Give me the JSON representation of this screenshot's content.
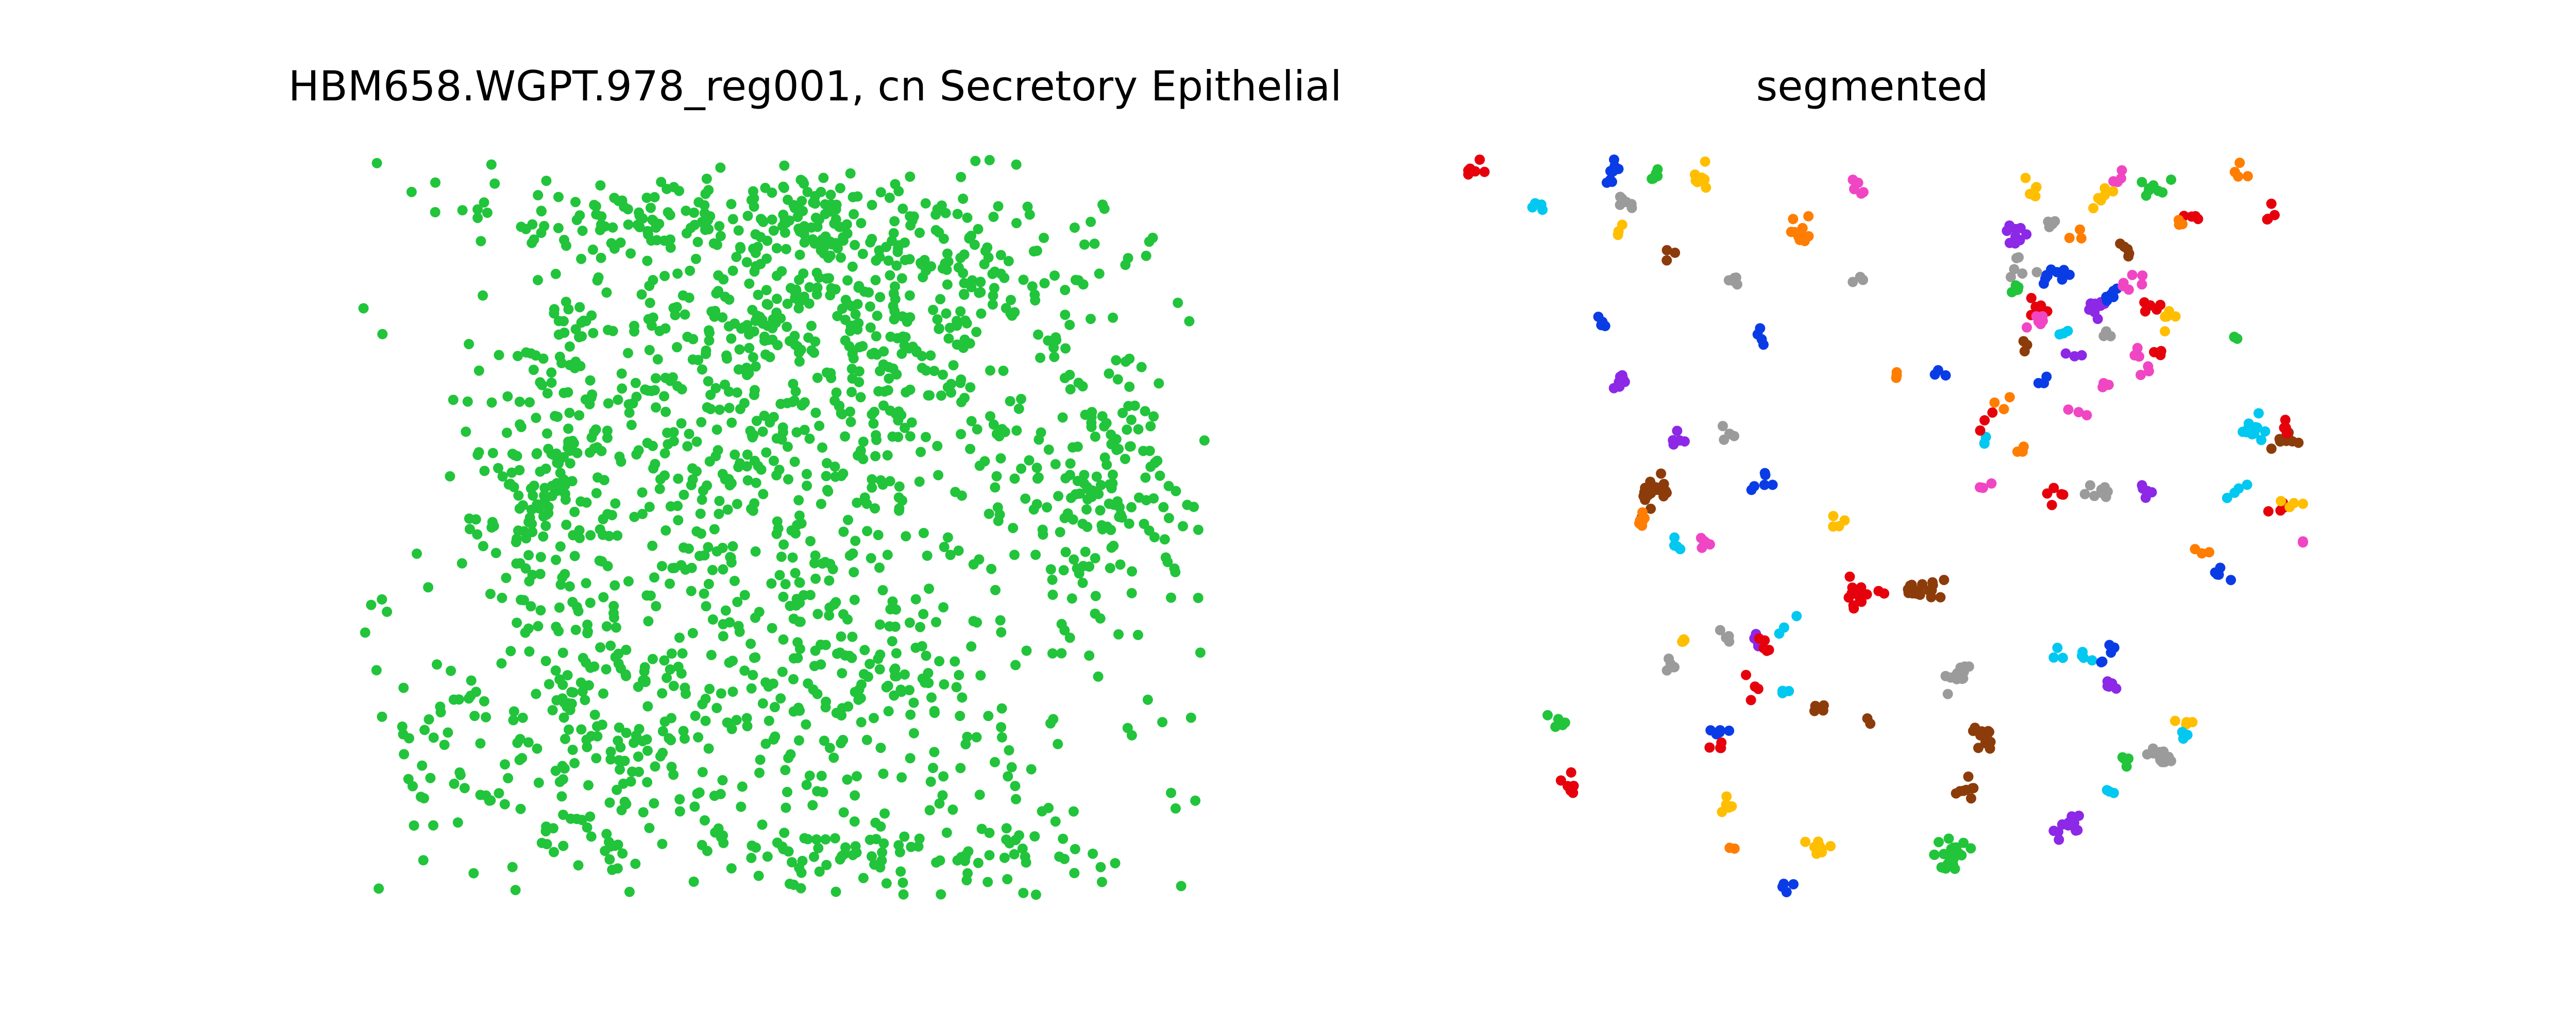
{
  "figure": {
    "panels": [
      {
        "title": "HBM658.WGPT.978_reg001, cn Secretory Epithelial",
        "point_color": "#21c43a"
      },
      {
        "title": "segmented",
        "palette": [
          "#e6000c",
          "#00c8f0",
          "#0a3ce6",
          "#9b9b9b",
          "#ffbe00",
          "#8c3c0a",
          "#ff7d00",
          "#8c28e6",
          "#f046c3",
          "#21c43a"
        ]
      }
    ]
  },
  "chart_data": [
    {
      "type": "scatter",
      "title": "HBM658.WGPT.978_reg001, cn Secretory Epithelial",
      "xlabel": "",
      "ylabel": "",
      "axes_visible": false,
      "grid": false,
      "xlim": [
        0,
        100
      ],
      "ylim": [
        0,
        100
      ],
      "series": [
        {
          "color": "#21c43a",
          "points_description": "approx. 1900 cell centroids, densest in upper-central band",
          "density_regions": [
            {
              "cx": 58,
              "cy": 82,
              "rx": 26,
              "ry": 16,
              "n": 380
            },
            {
              "cx": 48,
              "cy": 60,
              "rx": 28,
              "ry": 20,
              "n": 320
            },
            {
              "cx": 88,
              "cy": 56,
              "rx": 9,
              "ry": 16,
              "n": 140
            },
            {
              "cx": 22,
              "cy": 58,
              "rx": 8,
              "ry": 22,
              "n": 150
            },
            {
              "cx": 30,
              "cy": 26,
              "rx": 14,
              "ry": 20,
              "n": 200
            },
            {
              "cx": 58,
              "cy": 30,
              "rx": 22,
              "ry": 18,
              "n": 220
            },
            {
              "cx": 45,
              "cy": 92,
              "rx": 28,
              "ry": 6,
              "n": 160
            },
            {
              "cx": 10,
              "cy": 20,
              "rx": 7,
              "ry": 10,
              "n": 35
            },
            {
              "cx": 60,
              "cy": 6,
              "rx": 30,
              "ry": 5,
              "n": 100
            },
            {
              "cx": 50,
              "cy": 50,
              "rx": 48,
              "ry": 48,
              "n": 200
            }
          ]
        }
      ]
    },
    {
      "type": "scatter",
      "title": "segmented",
      "xlabel": "",
      "ylabel": "",
      "axes_visible": false,
      "grid": false,
      "xlim": [
        0,
        100
      ],
      "ylim": [
        0,
        100
      ],
      "clusters": [
        {
          "x": 1,
          "y": 99,
          "c": 0,
          "n": 6
        },
        {
          "x": 8,
          "y": 94,
          "c": 1,
          "n": 4
        },
        {
          "x": 17,
          "y": 98,
          "c": 2,
          "n": 8
        },
        {
          "x": 19,
          "y": 94,
          "c": 3,
          "n": 6
        },
        {
          "x": 18,
          "y": 91,
          "c": 4,
          "n": 3
        },
        {
          "x": 22,
          "y": 98,
          "c": 9,
          "n": 5
        },
        {
          "x": 28,
          "y": 98,
          "c": 4,
          "n": 7
        },
        {
          "x": 24,
          "y": 87,
          "c": 5,
          "n": 3
        },
        {
          "x": 40,
          "y": 90,
          "c": 6,
          "n": 12
        },
        {
          "x": 47,
          "y": 96,
          "c": 8,
          "n": 5
        },
        {
          "x": 32,
          "y": 84,
          "c": 3,
          "n": 5
        },
        {
          "x": 47,
          "y": 84,
          "c": 3,
          "n": 3
        },
        {
          "x": 16,
          "y": 78,
          "c": 2,
          "n": 5
        },
        {
          "x": 35,
          "y": 76,
          "c": 2,
          "n": 4
        },
        {
          "x": 51,
          "y": 71,
          "c": 6,
          "n": 3
        },
        {
          "x": 57,
          "y": 71,
          "c": 2,
          "n": 3
        },
        {
          "x": 18,
          "y": 70,
          "c": 7,
          "n": 8
        },
        {
          "x": 25,
          "y": 62,
          "c": 7,
          "n": 5
        },
        {
          "x": 31,
          "y": 63,
          "c": 3,
          "n": 5
        },
        {
          "x": 35,
          "y": 56,
          "c": 2,
          "n": 6
        },
        {
          "x": 22,
          "y": 55,
          "c": 5,
          "n": 22
        },
        {
          "x": 21,
          "y": 51,
          "c": 6,
          "n": 6
        },
        {
          "x": 25,
          "y": 48,
          "c": 1,
          "n": 4
        },
        {
          "x": 28,
          "y": 48,
          "c": 8,
          "n": 5
        },
        {
          "x": 44,
          "y": 50,
          "c": 4,
          "n": 4
        },
        {
          "x": 47,
          "y": 41,
          "c": 0,
          "n": 14
        },
        {
          "x": 54,
          "y": 42,
          "c": 5,
          "n": 18
        },
        {
          "x": 26,
          "y": 35,
          "c": 4,
          "n": 5
        },
        {
          "x": 30,
          "y": 35,
          "c": 3,
          "n": 4
        },
        {
          "x": 34,
          "y": 35,
          "c": 7,
          "n": 4
        },
        {
          "x": 36,
          "y": 34,
          "c": 0,
          "n": 5
        },
        {
          "x": 38,
          "y": 37,
          "c": 1,
          "n": 3
        },
        {
          "x": 24,
          "y": 31,
          "c": 3,
          "n": 6
        },
        {
          "x": 34,
          "y": 29,
          "c": 0,
          "n": 4
        },
        {
          "x": 38,
          "y": 28,
          "c": 1,
          "n": 3
        },
        {
          "x": 42,
          "y": 26,
          "c": 5,
          "n": 5
        },
        {
          "x": 48,
          "y": 24,
          "c": 5,
          "n": 2
        },
        {
          "x": 30,
          "y": 23,
          "c": 2,
          "n": 6
        },
        {
          "x": 30,
          "y": 21,
          "c": 0,
          "n": 4
        },
        {
          "x": 59,
          "y": 30,
          "c": 3,
          "n": 14
        },
        {
          "x": 62,
          "y": 22,
          "c": 5,
          "n": 14
        },
        {
          "x": 59,
          "y": 15,
          "c": 5,
          "n": 8
        },
        {
          "x": 11,
          "y": 24,
          "c": 9,
          "n": 5
        },
        {
          "x": 12,
          "y": 15,
          "c": 0,
          "n": 8
        },
        {
          "x": 31,
          "y": 13,
          "c": 4,
          "n": 5
        },
        {
          "x": 32,
          "y": 7,
          "c": 6,
          "n": 2
        },
        {
          "x": 42,
          "y": 7,
          "c": 4,
          "n": 9
        },
        {
          "x": 38,
          "y": 1,
          "c": 2,
          "n": 4
        },
        {
          "x": 58,
          "y": 6,
          "c": 9,
          "n": 26
        },
        {
          "x": 72,
          "y": 10,
          "c": 7,
          "n": 14
        },
        {
          "x": 77,
          "y": 14,
          "c": 1,
          "n": 3
        },
        {
          "x": 78,
          "y": 18,
          "c": 9,
          "n": 4
        },
        {
          "x": 83,
          "y": 19,
          "c": 3,
          "n": 14
        },
        {
          "x": 86,
          "y": 24,
          "c": 4,
          "n": 4
        },
        {
          "x": 86,
          "y": 22,
          "c": 1,
          "n": 3
        },
        {
          "x": 74,
          "y": 33,
          "c": 1,
          "n": 4
        },
        {
          "x": 77,
          "y": 33,
          "c": 2,
          "n": 6
        },
        {
          "x": 77,
          "y": 29,
          "c": 7,
          "n": 5
        },
        {
          "x": 71,
          "y": 33,
          "c": 1,
          "n": 3
        },
        {
          "x": 76,
          "y": 70,
          "c": 8,
          "n": 4
        },
        {
          "x": 66,
          "y": 61,
          "c": 6,
          "n": 3
        },
        {
          "x": 70,
          "y": 55,
          "c": 0,
          "n": 5
        },
        {
          "x": 76,
          "y": 55,
          "c": 3,
          "n": 8
        },
        {
          "x": 81,
          "y": 55,
          "c": 7,
          "n": 6
        },
        {
          "x": 62,
          "y": 56,
          "c": 8,
          "n": 3
        },
        {
          "x": 62,
          "y": 62,
          "c": 1,
          "n": 3
        },
        {
          "x": 62,
          "y": 64,
          "c": 0,
          "n": 3
        },
        {
          "x": 64,
          "y": 67,
          "c": 6,
          "n": 3
        },
        {
          "x": 73,
          "y": 66,
          "c": 8,
          "n": 3
        },
        {
          "x": 88,
          "y": 47,
          "c": 6,
          "n": 3
        },
        {
          "x": 97,
          "y": 53,
          "c": 0,
          "n": 6
        },
        {
          "x": 99,
          "y": 53,
          "c": 4,
          "n": 4
        },
        {
          "x": 100,
          "y": 48,
          "c": 8,
          "n": 2
        },
        {
          "x": 90,
          "y": 44,
          "c": 2,
          "n": 5
        },
        {
          "x": 94,
          "y": 63,
          "c": 1,
          "n": 14
        },
        {
          "x": 98,
          "y": 62,
          "c": 5,
          "n": 8
        },
        {
          "x": 98,
          "y": 64,
          "c": 0,
          "n": 4
        },
        {
          "x": 92,
          "y": 55,
          "c": 1,
          "n": 4
        },
        {
          "x": 92,
          "y": 76,
          "c": 9,
          "n": 3
        },
        {
          "x": 96,
          "y": 93,
          "c": 0,
          "n": 4
        },
        {
          "x": 93,
          "y": 98,
          "c": 6,
          "n": 4
        },
        {
          "x": 78,
          "y": 98,
          "c": 8,
          "n": 4
        },
        {
          "x": 82,
          "y": 96,
          "c": 9,
          "n": 8
        },
        {
          "x": 76,
          "y": 95,
          "c": 4,
          "n": 6
        },
        {
          "x": 68,
          "y": 96,
          "c": 4,
          "n": 6
        },
        {
          "x": 70,
          "y": 91,
          "c": 3,
          "n": 4
        },
        {
          "x": 66,
          "y": 90,
          "c": 7,
          "n": 10
        },
        {
          "x": 70,
          "y": 84,
          "c": 2,
          "n": 10
        },
        {
          "x": 66,
          "y": 85,
          "c": 3,
          "n": 6
        },
        {
          "x": 68,
          "y": 80,
          "c": 0,
          "n": 8
        },
        {
          "x": 68,
          "y": 78,
          "c": 8,
          "n": 6
        },
        {
          "x": 66,
          "y": 82,
          "c": 9,
          "n": 5
        },
        {
          "x": 75,
          "y": 80,
          "c": 7,
          "n": 8
        },
        {
          "x": 77,
          "y": 82,
          "c": 2,
          "n": 6
        },
        {
          "x": 80,
          "y": 84,
          "c": 8,
          "n": 6
        },
        {
          "x": 82,
          "y": 80,
          "c": 0,
          "n": 5
        },
        {
          "x": 84,
          "y": 79,
          "c": 4,
          "n": 6
        },
        {
          "x": 79,
          "y": 88,
          "c": 5,
          "n": 5
        },
        {
          "x": 86,
          "y": 92,
          "c": 0,
          "n": 5
        },
        {
          "x": 85,
          "y": 92,
          "c": 6,
          "n": 3
        },
        {
          "x": 73,
          "y": 90,
          "c": 6,
          "n": 3
        },
        {
          "x": 81,
          "y": 71,
          "c": 8,
          "n": 3
        },
        {
          "x": 66,
          "y": 75,
          "c": 5,
          "n": 3
        },
        {
          "x": 68,
          "y": 70,
          "c": 2,
          "n": 3
        },
        {
          "x": 73,
          "y": 74,
          "c": 7,
          "n": 3
        },
        {
          "x": 72,
          "y": 77,
          "c": 1,
          "n": 3
        },
        {
          "x": 76,
          "y": 76,
          "c": 3,
          "n": 3
        },
        {
          "x": 80,
          "y": 74,
          "c": 8,
          "n": 3
        },
        {
          "x": 83,
          "y": 74,
          "c": 0,
          "n": 3
        }
      ]
    }
  ]
}
